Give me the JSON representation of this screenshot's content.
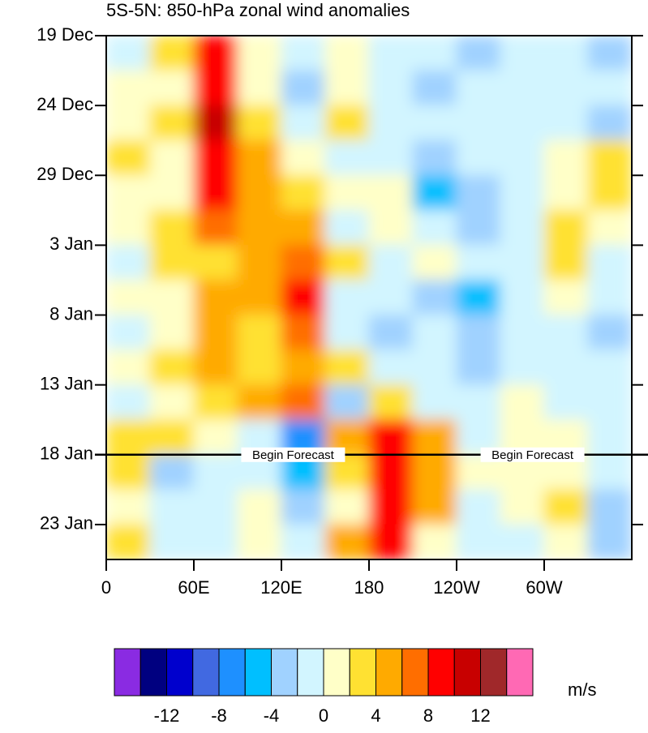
{
  "chart_data": {
    "type": "hovmoller",
    "title": "5S-5N: 850-hPa zonal wind anomalies",
    "units_label": "m/s",
    "x": [
      15,
      45,
      75,
      105,
      135,
      165,
      195,
      225,
      255,
      285,
      315,
      345
    ],
    "y": [
      1.25,
      3.75,
      6.25,
      8.75,
      11.25,
      13.75,
      16.25,
      18.75,
      21.25,
      23.75,
      26.25,
      28.75,
      31.25,
      33.75,
      36.25
    ],
    "values": [
      [
        -1,
        2,
        9,
        0,
        -2,
        1,
        -2,
        -2,
        -3,
        -1,
        -2,
        -3
      ],
      [
        0,
        1,
        8,
        1,
        -4,
        1,
        -1,
        -3,
        -2,
        -1,
        -2,
        -2
      ],
      [
        1,
        2,
        11,
        3,
        -1,
        2,
        -1,
        -2,
        -1,
        -2,
        -1,
        -3
      ],
      [
        2,
        1,
        9,
        4,
        1,
        -1,
        -2,
        -4,
        -2,
        -1,
        1,
        2
      ],
      [
        1,
        1,
        9,
        4,
        3,
        0,
        0,
        -5,
        -3,
        -1,
        1,
        3
      ],
      [
        0,
        3,
        7,
        4,
        4,
        -2,
        0,
        -2,
        -3,
        -1,
        2,
        1
      ],
      [
        -1,
        2,
        2,
        4,
        6,
        3,
        -1,
        0,
        -2,
        -2,
        3,
        -1
      ],
      [
        0,
        1,
        4,
        5,
        8,
        -1,
        -2,
        -3,
        -6,
        -1,
        1,
        -2
      ],
      [
        -2,
        1,
        4,
        3,
        6,
        -1,
        -3,
        -2,
        -4,
        -1,
        -2,
        -3
      ],
      [
        0,
        2,
        4,
        3,
        5,
        2,
        -1,
        -2,
        -4,
        -1,
        -2,
        -1
      ],
      [
        -1,
        1,
        2,
        4,
        6,
        -3,
        2,
        -1,
        -2,
        1,
        -1,
        -1
      ],
      [
        2,
        2,
        0,
        -2,
        -8,
        4,
        8,
        4,
        -1,
        1,
        0,
        -2
      ],
      [
        2,
        -3,
        -1,
        -2,
        -6,
        2,
        8,
        5,
        0,
        1,
        1,
        -1
      ],
      [
        1,
        -2,
        -1,
        1,
        -3,
        1,
        8,
        4,
        -1,
        1,
        2,
        -3
      ],
      [
        2,
        -1,
        -1,
        1,
        -1,
        4,
        9,
        1,
        -1,
        -1,
        0,
        -4
      ]
    ],
    "xlim": [
      0,
      360
    ],
    "ylim": [
      0,
      37.5
    ],
    "xticks": [
      0,
      {
        "value": 60,
        "label": "60E"
      },
      {
        "value": 120,
        "label": "120E"
      },
      180,
      {
        "value": 240,
        "label": "120W"
      },
      {
        "value": 300,
        "label": "60W"
      }
    ],
    "yticks": [
      {
        "value": 0,
        "label": "19 Dec"
      },
      {
        "value": 5,
        "label": "24 Dec"
      },
      {
        "value": 10,
        "label": "29 Dec"
      },
      {
        "value": 15,
        "label": "3 Jan"
      },
      {
        "value": 20,
        "label": "8 Jan"
      },
      {
        "value": 25,
        "label": "13 Jan"
      },
      {
        "value": 30,
        "label": "18 Jan"
      },
      {
        "value": 35,
        "label": "23 Jan"
      }
    ],
    "forecast_start": 30,
    "annotations": [
      "Begin Forecast",
      "Begin Forecast"
    ],
    "levels": [
      -14,
      -12,
      -10,
      -8,
      -6,
      -4,
      -2,
      0,
      2,
      4,
      6,
      8,
      10,
      12,
      14
    ],
    "colors": [
      "#8a2be2",
      "#000080",
      "#0000cd",
      "#4169e1",
      "#1e90ff",
      "#00bfff",
      "#a0d2ff",
      "#d2f5ff",
      "#ffffc8",
      "#ffe132",
      "#ffaa00",
      "#ff6e00",
      "#ff0000",
      "#c80000",
      "#a0282a",
      "#ff69b4"
    ],
    "colorbar_ticks": [
      -12,
      -8,
      -4,
      0,
      4,
      8,
      12
    ]
  }
}
